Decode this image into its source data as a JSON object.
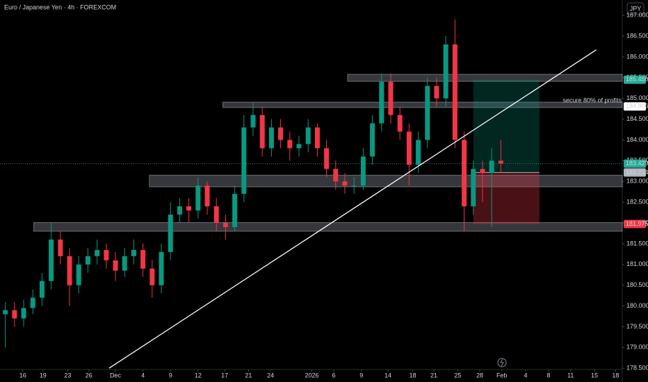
{
  "chart_data": {
    "type": "candlestick",
    "title": "Euro / Japanese Yen · 4h · FOREXCOM",
    "currency_button": "JPY",
    "annotation": "secure 80% of profits",
    "up_color": "#089981",
    "down_color": "#f23645",
    "x": [
      -12,
      -11,
      -10,
      -9,
      -8,
      -7,
      -6,
      -5,
      -4,
      -3,
      -2,
      -1,
      0,
      1,
      2,
      3,
      4,
      5,
      6,
      7,
      8,
      9,
      10,
      11,
      12,
      13,
      14,
      15,
      16,
      17,
      18,
      19,
      20,
      21,
      22,
      23,
      24,
      25,
      26,
      27,
      28,
      29,
      30,
      31,
      32,
      33,
      34,
      35,
      36,
      37,
      38,
      39,
      40,
      41,
      42
    ],
    "open": [
      179.8,
      179.9,
      179.7,
      179.95,
      180.2,
      180.6,
      181.6,
      181.2,
      180.5,
      181.0,
      181.2,
      181.35,
      181.1,
      180.85,
      181.2,
      181.35,
      180.9,
      180.5,
      181.3,
      182.2,
      182.4,
      182.3,
      182.9,
      182.4,
      182.0,
      181.9,
      182.7,
      184.3,
      184.6,
      183.8,
      184.3,
      184.0,
      183.8,
      183.9,
      184.3,
      183.8,
      183.3,
      183.0,
      182.9,
      182.9,
      183.6,
      184.4,
      185.4,
      184.6,
      184.2,
      183.4,
      184.0,
      185.3,
      185.0,
      186.3,
      184.0,
      182.4,
      183.3,
      183.2,
      183.5
    ],
    "high": [
      180.1,
      180.1,
      180.15,
      180.4,
      180.8,
      182.0,
      181.8,
      181.4,
      181.2,
      181.4,
      181.6,
      181.5,
      181.3,
      181.4,
      181.6,
      181.5,
      181.1,
      181.5,
      182.5,
      182.6,
      182.6,
      183.1,
      183.0,
      182.6,
      182.2,
      182.9,
      184.6,
      184.9,
      184.8,
      184.5,
      184.5,
      184.2,
      184.1,
      184.5,
      184.4,
      184.0,
      183.5,
      183.2,
      183.1,
      183.8,
      184.6,
      185.6,
      185.6,
      184.8,
      184.4,
      184.2,
      185.5,
      185.5,
      186.5,
      186.9,
      184.2,
      183.5,
      183.5,
      183.8,
      184.0
    ],
    "low": [
      179.0,
      179.5,
      179.5,
      179.8,
      180.0,
      180.4,
      181.0,
      180.0,
      180.3,
      180.8,
      181.0,
      180.9,
      180.6,
      180.7,
      181.0,
      180.7,
      180.2,
      180.3,
      181.1,
      182.0,
      182.0,
      182.1,
      182.2,
      181.8,
      181.6,
      181.8,
      182.5,
      184.1,
      183.6,
      183.6,
      183.8,
      183.5,
      183.6,
      183.7,
      183.6,
      183.1,
      182.8,
      182.7,
      182.7,
      182.8,
      183.4,
      184.2,
      184.4,
      184.0,
      182.9,
      183.2,
      183.8,
      184.8,
      184.8,
      183.8,
      181.8,
      182.2,
      182.5,
      181.9,
      183.2
    ],
    "close": [
      179.9,
      179.7,
      179.95,
      180.2,
      180.6,
      181.6,
      181.2,
      180.5,
      181.0,
      181.2,
      181.35,
      181.1,
      180.85,
      181.2,
      181.35,
      180.9,
      180.5,
      181.3,
      182.2,
      182.4,
      182.3,
      182.9,
      182.4,
      182.0,
      181.9,
      182.7,
      184.3,
      184.6,
      183.8,
      184.3,
      184.0,
      183.8,
      183.9,
      184.3,
      183.8,
      183.3,
      183.0,
      182.9,
      182.9,
      183.6,
      184.4,
      185.4,
      184.6,
      184.2,
      183.4,
      184.0,
      185.3,
      185.0,
      186.3,
      184.0,
      182.4,
      183.3,
      183.2,
      183.5,
      183.43
    ],
    "xlim": [
      -12.58,
      55.23
    ],
    "ylim": [
      178.47,
      187.37
    ],
    "xticks": [
      {
        "value": -10.1,
        "label": "16"
      },
      {
        "value": -7.9,
        "label": "19"
      },
      {
        "value": -5.2,
        "label": "23"
      },
      {
        "value": -2.9,
        "label": "26"
      },
      {
        "value": 0,
        "label": "Dec"
      },
      {
        "value": 3.0,
        "label": "4"
      },
      {
        "value": 6.0,
        "label": "9"
      },
      {
        "value": 9.0,
        "label": "12"
      },
      {
        "value": 11.9,
        "label": "17"
      },
      {
        "value": 14.5,
        "label": "21"
      },
      {
        "value": 16.9,
        "label": "24"
      },
      {
        "value": 21.4,
        "label": "2026"
      },
      {
        "value": 23.8,
        "label": "6"
      },
      {
        "value": 26.8,
        "label": "9"
      },
      {
        "value": 29.7,
        "label": "14"
      },
      {
        "value": 32.4,
        "label": "18"
      },
      {
        "value": 34.7,
        "label": "21"
      },
      {
        "value": 37.3,
        "label": "25"
      },
      {
        "value": 39.7,
        "label": "28"
      },
      {
        "value": 42.1,
        "label": "Feb"
      },
      {
        "value": 44.7,
        "label": "4"
      },
      {
        "value": 47.2,
        "label": "8"
      },
      {
        "value": 49.6,
        "label": "11"
      },
      {
        "value": 52.2,
        "label": "15"
      },
      {
        "value": 54.5,
        "label": "18"
      }
    ],
    "yticks": [
      {
        "value": 178.5,
        "label": "178.500"
      },
      {
        "value": 179.0,
        "label": "179.000"
      },
      {
        "value": 179.5,
        "label": "179.500"
      },
      {
        "value": 180.0,
        "label": "180.000"
      },
      {
        "value": 180.5,
        "label": "180.500"
      },
      {
        "value": 181.0,
        "label": "181.000"
      },
      {
        "value": 181.5,
        "label": "181.500"
      },
      {
        "value": 182.0,
        "label": "182.000"
      },
      {
        "value": 182.5,
        "label": "182.500"
      },
      {
        "value": 183.0,
        "label": "183.000"
      },
      {
        "value": 183.5,
        "label": "183.500"
      },
      {
        "value": 184.0,
        "label": "184.000"
      },
      {
        "value": 184.5,
        "label": "184.500"
      },
      {
        "value": 185.0,
        "label": "185.000"
      },
      {
        "value": 185.5,
        "label": "185.500"
      },
      {
        "value": 186.0,
        "label": "186.000"
      },
      {
        "value": 186.5,
        "label": "186.500"
      },
      {
        "value": 187.0,
        "label": "187.000"
      }
    ],
    "zones": [
      {
        "from": 25.3,
        "to": 55.23,
        "low": 185.41,
        "high": 185.58
      },
      {
        "from": 11.7,
        "to": 55.23,
        "low": 184.78,
        "high": 184.91
      },
      {
        "from": 3.7,
        "to": 55.23,
        "low": 182.87,
        "high": 183.15
      },
      {
        "from": -8.9,
        "to": 55.23,
        "low": 181.8,
        "high": 182.01
      }
    ],
    "trend_line": {
      "x": [
        -0.7,
        52.4
      ],
      "y": [
        178.5,
        186.17
      ]
    },
    "position": {
      "from": 39,
      "to": 46.2,
      "entry": 183.214,
      "target": 185.45,
      "stop": 181.975
    },
    "current_price": 183.429,
    "price_labels": [
      {
        "value": 185.45,
        "label": "185.450",
        "color": "#22ab94",
        "text_color": "#ffffff"
      },
      {
        "value": 184.806,
        "label": "184.806",
        "color": "#ffffff",
        "text_color": "#000000"
      },
      {
        "value": 183.429,
        "label": "183.429",
        "color": "#22ab94",
        "text_color": "#ffffff"
      },
      {
        "value": 183.214,
        "label": "183.214",
        "color": "#b2b5be",
        "text_color": "#000000"
      },
      {
        "value": 181.975,
        "label": "181.975",
        "color": "#f23645",
        "text_color": "#ffffff"
      }
    ]
  }
}
